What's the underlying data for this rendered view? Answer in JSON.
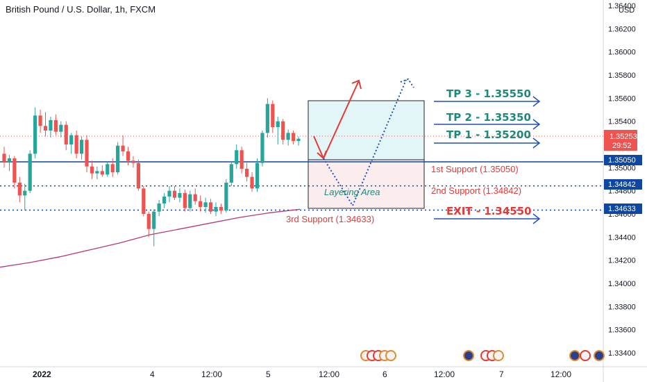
{
  "header": {
    "title": "British Pound / U.S. Dollar, 1h, FXCM"
  },
  "price_scale": {
    "currency": "USD",
    "ticks": [
      "1.36400",
      "1.36200",
      "1.36000",
      "1.35800",
      "1.35600",
      "1.35400",
      "1.35200",
      "1.35000",
      "1.34800",
      "1.34600",
      "1.34400",
      "1.34200",
      "1.34000",
      "1.33800",
      "1.33600",
      "1.33400"
    ],
    "current_price": "1.35253",
    "countdown": "29:52",
    "badges": [
      "1.35050",
      "1.34842",
      "1.34633"
    ]
  },
  "time_axis": {
    "labels": [
      "2022",
      "4",
      "12:00",
      "5",
      "12:00",
      "6",
      "12:00",
      "7",
      "12:00"
    ]
  },
  "annotations": {
    "tp3": "TP 3 - 1.35550",
    "tp2": "TP 2 - 1.35350",
    "tp1": "TP 1 - 1.35200",
    "support1": "1st Support (1.35050)",
    "support2": "2nd Support (1.34842)",
    "support3": "3rd Support (1.34633)",
    "exit": "EXIT - 1.34550",
    "layering": "Layering Area"
  },
  "colors": {
    "up": "#26a69a",
    "down": "#ef5350",
    "level": "#0d47a1",
    "tp": "#1b8a7a",
    "support": "#e53935",
    "ma": "#b5387c",
    "arrow": "#1e4fbf"
  },
  "chart_data": {
    "type": "candlestick",
    "title": "British Pound / U.S. Dollar, 1h, FXCM",
    "ylim": [
      1.333,
      1.364
    ],
    "x_labels": [
      "2022",
      "4",
      "12:00",
      "5",
      "12:00",
      "6",
      "12:00",
      "7",
      "12:00"
    ],
    "candles": [
      [
        1.3512,
        1.3518,
        1.35,
        1.3505
      ],
      [
        1.3505,
        1.3511,
        1.3497,
        1.3508
      ],
      [
        1.3508,
        1.351,
        1.3482,
        1.3487
      ],
      [
        1.3487,
        1.3492,
        1.347,
        1.3476
      ],
      [
        1.3476,
        1.3486,
        1.3463,
        1.348
      ],
      [
        1.348,
        1.3515,
        1.3478,
        1.3512
      ],
      [
        1.3512,
        1.3552,
        1.3508,
        1.3545
      ],
      [
        1.3545,
        1.355,
        1.353,
        1.3536
      ],
      [
        1.3536,
        1.3548,
        1.3527,
        1.3532
      ],
      [
        1.3532,
        1.3544,
        1.3526,
        1.3541
      ],
      [
        1.3541,
        1.3546,
        1.3528,
        1.3531
      ],
      [
        1.3531,
        1.354,
        1.3526,
        1.3537
      ],
      [
        1.3537,
        1.354,
        1.3515,
        1.352
      ],
      [
        1.352,
        1.353,
        1.3512,
        1.3528
      ],
      [
        1.3528,
        1.3532,
        1.3508,
        1.3512
      ],
      [
        1.3512,
        1.3527,
        1.3507,
        1.3524
      ],
      [
        1.3524,
        1.3528,
        1.3496,
        1.3501
      ],
      [
        1.3501,
        1.3506,
        1.349,
        1.3495
      ],
      [
        1.3495,
        1.3501,
        1.349,
        1.3497
      ],
      [
        1.3497,
        1.3502,
        1.3492,
        1.3494
      ],
      [
        1.3494,
        1.3505,
        1.3492,
        1.3503
      ],
      [
        1.3503,
        1.3508,
        1.3492,
        1.3496
      ],
      [
        1.3496,
        1.3522,
        1.3494,
        1.3519
      ],
      [
        1.3519,
        1.3528,
        1.351,
        1.3514
      ],
      [
        1.3514,
        1.3518,
        1.3502,
        1.3506
      ],
      [
        1.3506,
        1.351,
        1.35,
        1.3504
      ],
      [
        1.3504,
        1.3507,
        1.348,
        1.3482
      ],
      [
        1.3482,
        1.3484,
        1.3458,
        1.346
      ],
      [
        1.346,
        1.3462,
        1.344,
        1.3447
      ],
      [
        1.3447,
        1.3464,
        1.3432,
        1.3462
      ],
      [
        1.3462,
        1.3472,
        1.3458,
        1.3469
      ],
      [
        1.3469,
        1.3478,
        1.3465,
        1.3475
      ],
      [
        1.3475,
        1.3484,
        1.347,
        1.348
      ],
      [
        1.348,
        1.3484,
        1.3472,
        1.3474
      ],
      [
        1.3474,
        1.3482,
        1.347,
        1.3478
      ],
      [
        1.3478,
        1.3481,
        1.3462,
        1.3465
      ],
      [
        1.3465,
        1.348,
        1.3462,
        1.3477
      ],
      [
        1.3477,
        1.3482,
        1.3468,
        1.3471
      ],
      [
        1.3471,
        1.3476,
        1.3462,
        1.3466
      ],
      [
        1.3466,
        1.3474,
        1.3461,
        1.347
      ],
      [
        1.347,
        1.3473,
        1.346,
        1.3462
      ],
      [
        1.3462,
        1.347,
        1.3458,
        1.3466
      ],
      [
        1.3466,
        1.3469,
        1.346,
        1.3463
      ],
      [
        1.3463,
        1.349,
        1.3461,
        1.3487
      ],
      [
        1.3487,
        1.3505,
        1.3484,
        1.3503
      ],
      [
        1.3503,
        1.352,
        1.3499,
        1.3515
      ],
      [
        1.3515,
        1.3518,
        1.3495,
        1.3499
      ],
      [
        1.3499,
        1.3504,
        1.3488,
        1.3492
      ],
      [
        1.3492,
        1.3496,
        1.3479,
        1.3482
      ],
      [
        1.3482,
        1.3508,
        1.3479,
        1.3504
      ],
      [
        1.3504,
        1.3532,
        1.3501,
        1.353
      ],
      [
        1.353,
        1.356,
        1.3526,
        1.3555
      ],
      [
        1.3555,
        1.3558,
        1.353,
        1.3535
      ],
      [
        1.3535,
        1.3544,
        1.352,
        1.354
      ],
      [
        1.354,
        1.3542,
        1.352,
        1.3524
      ],
      [
        1.3524,
        1.3533,
        1.3519,
        1.353
      ],
      [
        1.353,
        1.3532,
        1.352,
        1.3523
      ],
      [
        1.3523,
        1.3527,
        1.3519,
        1.3525
      ]
    ],
    "moving_average": [
      [
        0,
        1.3414
      ],
      [
        0.1,
        1.3418
      ],
      [
        0.2,
        1.3423
      ],
      [
        0.3,
        1.3429
      ],
      [
        0.4,
        1.3435
      ],
      [
        0.5,
        1.3442
      ],
      [
        0.6,
        1.3447
      ],
      [
        0.7,
        1.3452
      ],
      [
        0.8,
        1.3457
      ],
      [
        0.9,
        1.3461
      ],
      [
        1.0,
        1.3464
      ]
    ],
    "levels": [
      {
        "price": 1.3505,
        "style": "solid"
      },
      {
        "price": 1.34842,
        "style": "dotted"
      },
      {
        "price": 1.34633,
        "style": "dotted"
      }
    ],
    "targets": [
      1.3555,
      1.3535,
      1.352
    ],
    "exit": 1.3455
  }
}
